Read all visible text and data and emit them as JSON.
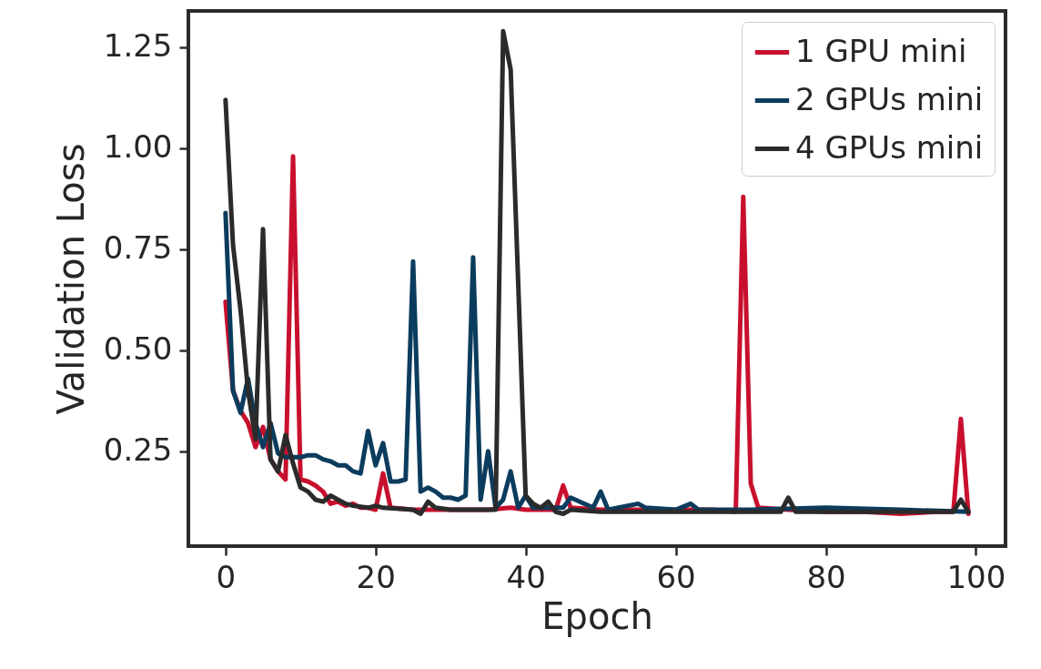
{
  "chart_data": {
    "type": "line",
    "xlabel": "Epoch",
    "ylabel": "Validation Loss",
    "xlim": [
      -4.95,
      103.95
    ],
    "ylim": [
      0.015,
      1.34
    ],
    "xticks": [
      0,
      20,
      40,
      60,
      80,
      100
    ],
    "yticks": [
      {
        "value": 0.25,
        "label": "0.25"
      },
      {
        "value": 0.5,
        "label": "0.50"
      },
      {
        "value": 0.75,
        "label": "0.75"
      },
      {
        "value": 1.0,
        "label": "1.00"
      },
      {
        "value": 1.25,
        "label": "1.25"
      }
    ],
    "grid": false,
    "legend": "top right",
    "line_style": "solid",
    "series": [
      {
        "name": "1 GPU mini",
        "color": "#c8102e",
        "x": [
          0,
          1,
          2,
          3,
          4,
          5,
          6,
          7,
          8,
          9,
          10,
          11,
          12,
          13,
          14,
          15,
          16,
          17,
          18,
          19,
          20,
          21,
          22,
          25,
          30,
          35,
          38,
          40,
          44,
          45,
          46,
          50,
          55,
          60,
          65,
          68,
          69,
          70,
          71,
          75,
          80,
          85,
          90,
          95,
          97,
          98,
          99
        ],
        "values": [
          0.62,
          0.4,
          0.35,
          0.32,
          0.26,
          0.31,
          0.23,
          0.2,
          0.18,
          0.98,
          0.18,
          0.175,
          0.165,
          0.15,
          0.12,
          0.125,
          0.115,
          0.12,
          0.11,
          0.11,
          0.105,
          0.195,
          0.11,
          0.105,
          0.105,
          0.105,
          0.11,
          0.105,
          0.105,
          0.165,
          0.11,
          0.105,
          0.105,
          0.105,
          0.105,
          0.1,
          0.88,
          0.17,
          0.11,
          0.105,
          0.1,
          0.1,
          0.095,
          0.1,
          0.1,
          0.33,
          0.095
        ]
      },
      {
        "name": "2 GPUs mini",
        "color": "#0b3c5d",
        "x": [
          0,
          1,
          2,
          3,
          4,
          5,
          6,
          7,
          8,
          10,
          11,
          12,
          13,
          14,
          15,
          16,
          17,
          18,
          19,
          20,
          21,
          22,
          23,
          24,
          25,
          26,
          27,
          28,
          29,
          30,
          31,
          32,
          33,
          34,
          35,
          36,
          37,
          38,
          39,
          40,
          41,
          45,
          46,
          49,
          50,
          51,
          55,
          56,
          60,
          62,
          63,
          70,
          80,
          90,
          99
        ],
        "values": [
          0.84,
          0.4,
          0.345,
          0.43,
          0.32,
          0.26,
          0.32,
          0.245,
          0.235,
          0.235,
          0.24,
          0.24,
          0.23,
          0.225,
          0.215,
          0.215,
          0.2,
          0.195,
          0.3,
          0.215,
          0.27,
          0.175,
          0.175,
          0.18,
          0.72,
          0.15,
          0.16,
          0.15,
          0.135,
          0.135,
          0.13,
          0.14,
          0.73,
          0.13,
          0.25,
          0.11,
          0.13,
          0.2,
          0.11,
          0.14,
          0.11,
          0.11,
          0.135,
          0.11,
          0.15,
          0.105,
          0.12,
          0.11,
          0.105,
          0.12,
          0.105,
          0.105,
          0.11,
          0.105,
          0.1
        ]
      },
      {
        "name": "4 GPUs mini",
        "color": "#2b2b2b",
        "x": [
          0,
          1,
          2,
          3,
          4,
          5,
          6,
          7,
          8,
          9,
          10,
          11,
          12,
          13,
          14,
          15,
          16,
          17,
          19,
          20,
          21,
          25,
          26,
          27,
          28,
          30,
          36,
          37,
          38,
          39,
          40,
          41,
          42,
          43,
          44,
          45,
          46,
          50,
          60,
          70,
          74,
          75,
          76,
          80,
          90,
          97,
          98,
          99
        ],
        "values": [
          1.12,
          0.76,
          0.6,
          0.4,
          0.28,
          0.8,
          0.23,
          0.2,
          0.29,
          0.22,
          0.16,
          0.15,
          0.13,
          0.125,
          0.14,
          0.13,
          0.12,
          0.115,
          0.11,
          0.115,
          0.11,
          0.105,
          0.095,
          0.125,
          0.11,
          0.105,
          0.105,
          1.29,
          1.195,
          0.67,
          0.14,
          0.12,
          0.11,
          0.125,
          0.1,
          0.095,
          0.105,
          0.1,
          0.1,
          0.1,
          0.1,
          0.135,
          0.1,
          0.1,
          0.1,
          0.1,
          0.13,
          0.1
        ]
      }
    ]
  }
}
